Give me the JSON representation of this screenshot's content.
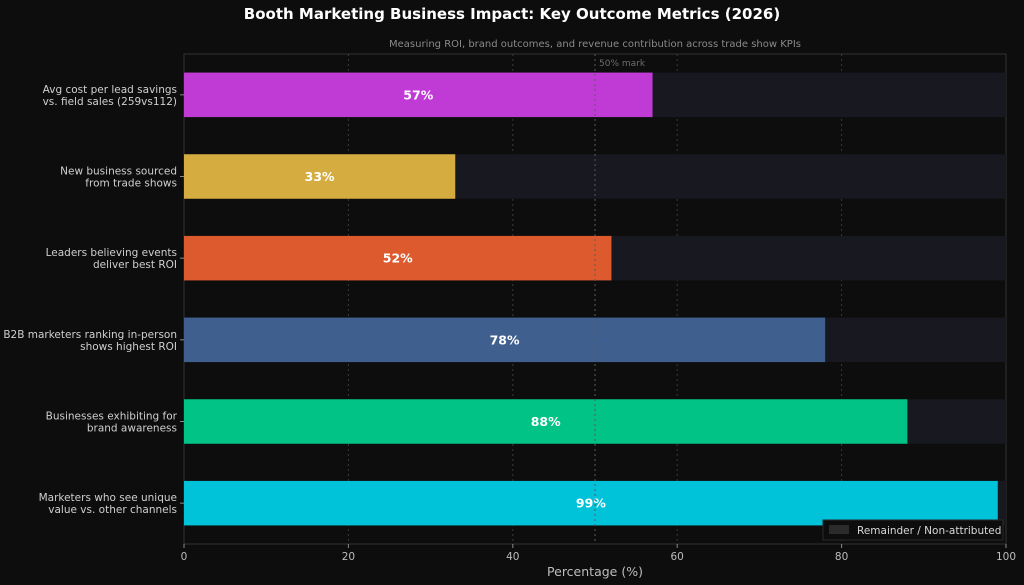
{
  "chart_data": {
    "type": "bar",
    "orientation": "horizontal",
    "title": "Booth Marketing Business Impact: Key Outcome Metrics (2026)",
    "subtitle": "Measuring ROI, brand outcomes, and revenue contribution across trade show KPIs",
    "xlabel": "Percentage (%)",
    "ylabel": "",
    "xlim": [
      0,
      100
    ],
    "xticks": [
      "0",
      "20",
      "40",
      "60",
      "80",
      "100"
    ],
    "grid": true,
    "reference_line": {
      "value": 50,
      "label": "50% mark"
    },
    "legend": {
      "placement": "bottom-right",
      "entries": [
        "Remainder / Non-attributed"
      ]
    },
    "categories": [
      [
        "Avg cost per lead savings",
        "vs. field sales (259vs112)"
      ],
      [
        "New business sourced",
        "from trade shows"
      ],
      [
        "Leaders believing events",
        "deliver best ROI"
      ],
      [
        "B2B marketers ranking in-person",
        "shows highest ROI"
      ],
      [
        "Businesses exhibiting for",
        "brand awareness"
      ],
      [
        "Marketers who see unique",
        "value vs. other channels"
      ]
    ],
    "values": [
      57,
      33,
      52,
      78,
      88,
      99
    ],
    "value_labels": [
      "57%",
      "33%",
      "52%",
      "78%",
      "88%",
      "99%"
    ],
    "colors": [
      "#c03ad6",
      "#d4ac40",
      "#dc5a2e",
      "#3f5f8f",
      "#00c385",
      "#00c2d9"
    ],
    "remainder_color": "#171820"
  }
}
